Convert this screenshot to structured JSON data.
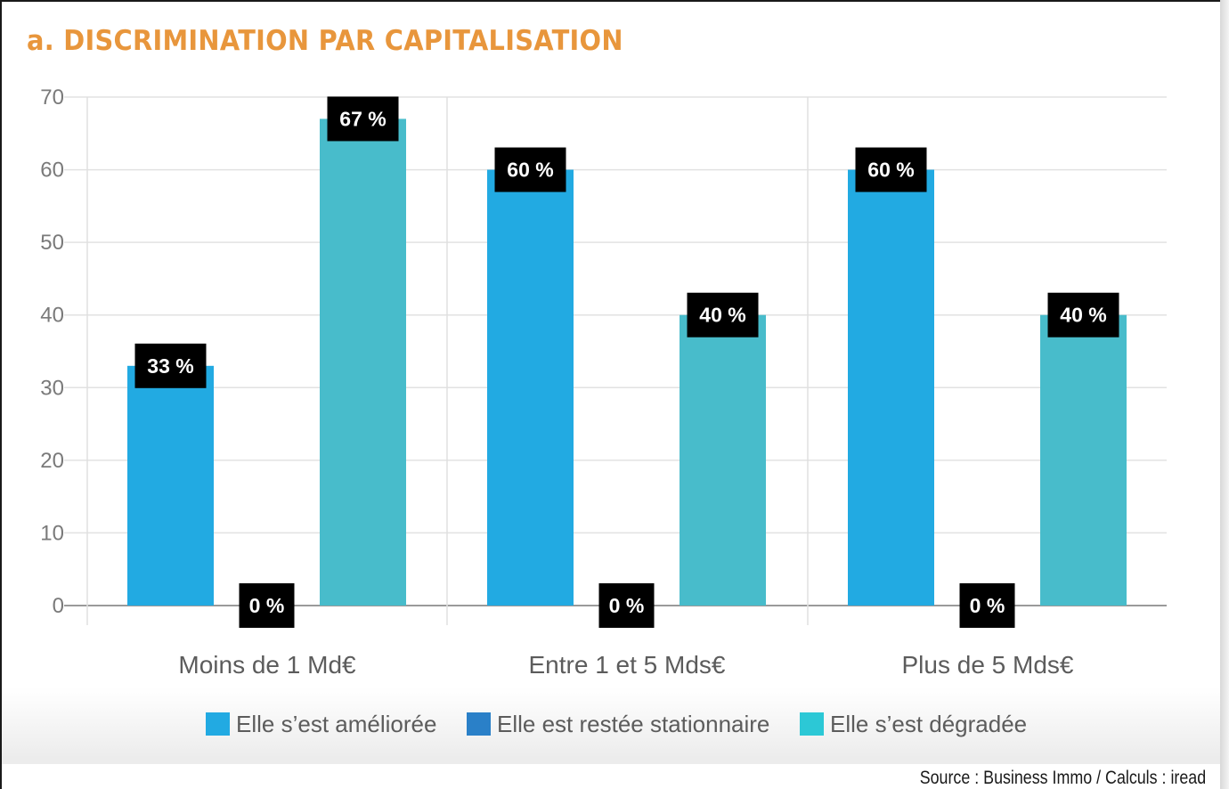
{
  "title": "a. DISCRIMINATION PAR CAPITALISATION",
  "source": "Source : Business Immo / Calculs : iread",
  "colors": {
    "title": "#e8963c",
    "series": [
      "#22aae2",
      "#2a80c8",
      "#48bccb"
    ],
    "legend_swatches": [
      "#22aae2",
      "#2a80c8",
      "#2cc8d6"
    ],
    "data_label_bg": "#000000"
  },
  "chart_data": {
    "type": "bar",
    "title": "a. DISCRIMINATION PAR CAPITALISATION",
    "xlabel": "",
    "ylabel": "",
    "ylim": [
      0,
      70
    ],
    "yticks": [
      0,
      10,
      20,
      30,
      40,
      50,
      60,
      70
    ],
    "grid": true,
    "legend_position": "bottom",
    "categories": [
      "Moins de 1 Md€",
      "Entre 1 et 5 Mds€",
      "Plus de 5 Mds€"
    ],
    "series": [
      {
        "name": "Elle s’est améliorée",
        "values": [
          33,
          60,
          60
        ],
        "labels": [
          "33 %",
          "60 %",
          "60 %"
        ]
      },
      {
        "name": "Elle est restée stationnaire",
        "values": [
          0,
          0,
          0
        ],
        "labels": [
          "0 %",
          "0 %",
          "0 %"
        ]
      },
      {
        "name": "Elle s’est dégradée",
        "values": [
          67,
          40,
          40
        ],
        "labels": [
          "67 %",
          "40 %",
          "40 %"
        ]
      }
    ]
  }
}
